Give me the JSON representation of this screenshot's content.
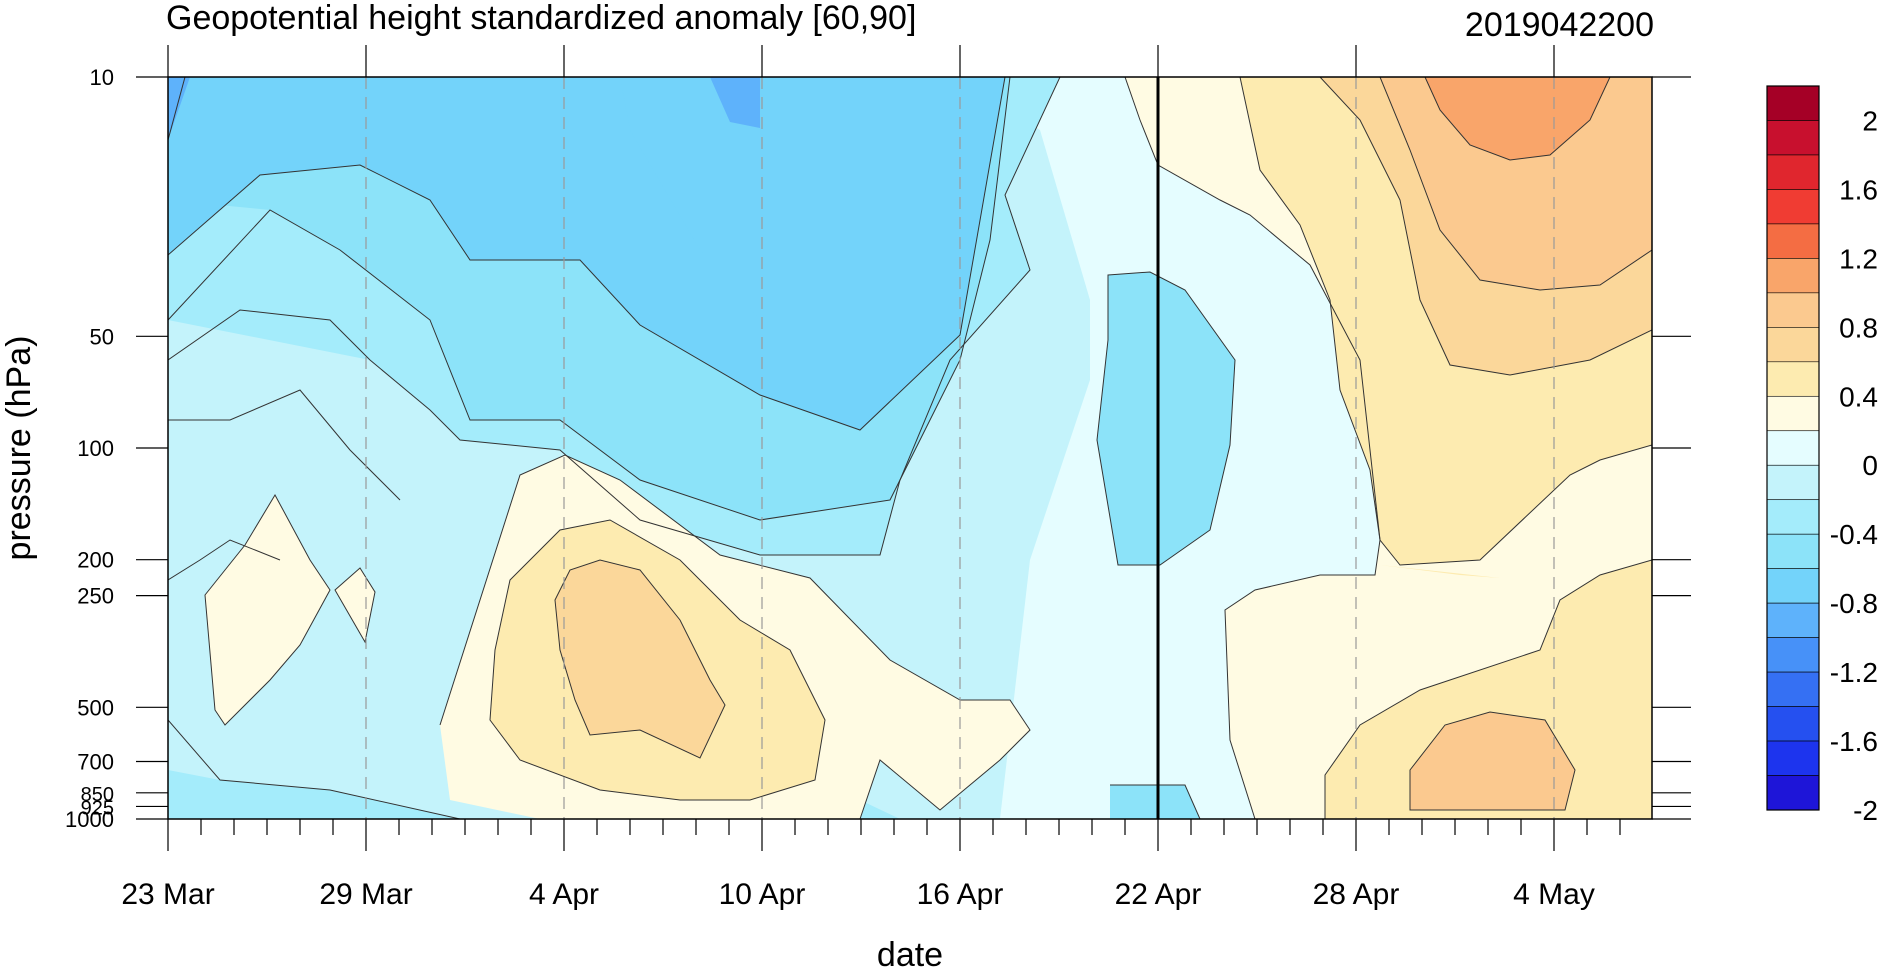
{
  "chart_data": {
    "type": "heatmap",
    "title": "Geopotential height standardized anomaly [60,90]",
    "stamp": "2019042200",
    "xlabel": "date",
    "ylabel": "pressure (hPa)",
    "x_ticks": [
      "23 Mar",
      "29 Mar",
      "4 Apr",
      "10 Apr",
      "16 Apr",
      "22 Apr",
      "28 Apr",
      "4 May"
    ],
    "y_levels": [
      "10",
      "50",
      "100",
      "200",
      "250",
      "500",
      "700",
      "850",
      "925",
      "1000"
    ],
    "y_log_scale": true,
    "current_date_marker": "22 Apr",
    "contour_interval": 0.2,
    "colorbar": {
      "labels": [
        "2",
        "1.6",
        "1.2",
        "0.8",
        "0.4",
        "0",
        "-0.4",
        "-0.8",
        "-1.2",
        "-1.6",
        "-2"
      ],
      "colors_top_to_bottom": [
        "#a50026",
        "#c8102e",
        "#e0262e",
        "#f03c33",
        "#f46d43",
        "#f9a56a",
        "#fbc98f",
        "#fbd79a",
        "#fdebb0",
        "#fffbe3",
        "#e5fdff",
        "#c4f3fb",
        "#a4ecfb",
        "#8ce3f9",
        "#73d3fa",
        "#5eb2fb",
        "#4791f8",
        "#3570f3",
        "#2550f0",
        "#1d34ee",
        "#1e15d8"
      ]
    },
    "regions": [
      {
        "name": "upper_west_negative",
        "dates": "23 Mar - 20 Apr",
        "levels": "10-150 hPa",
        "value": -0.8
      },
      {
        "name": "upper_east_positive",
        "dates": "1 May - 6 May",
        "levels": "10-30 hPa",
        "value": 0.9
      },
      {
        "name": "lower_april_positive",
        "dates": "2 Apr - 13 Apr",
        "levels": "150-900 hPa",
        "value": 0.5
      },
      {
        "name": "mid_22apr_negative",
        "dates": "20 Apr - 24 Apr",
        "levels": "70-200 hPa",
        "value": -0.5
      },
      {
        "name": "lower_may_positive",
        "dates": "30 Apr - 5 May",
        "levels": "500-1000 hPa",
        "value": 0.5
      }
    ]
  }
}
